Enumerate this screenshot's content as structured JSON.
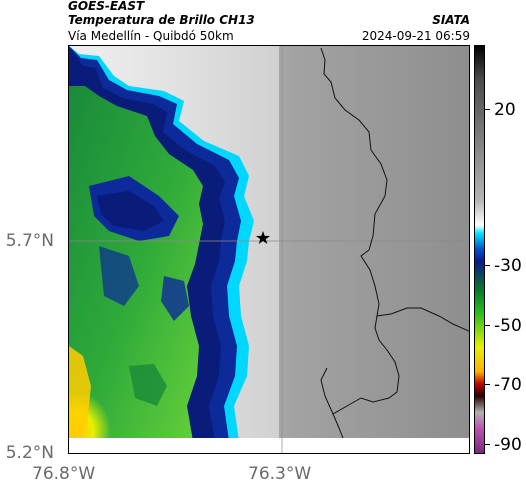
{
  "header": {
    "source": "GOES-EAST",
    "product": "Temperatura de Brillo CH13",
    "region": "Vía Medellín - Quibdó 50km",
    "org": "SIATA",
    "timestamp": "2024-09-21 06:59"
  },
  "map": {
    "lat_ticks": [
      "5.7°N",
      "5.2°N"
    ],
    "lon_ticks": [
      "76.8°W",
      "76.3°W"
    ],
    "marker": "star-marker"
  },
  "colorbar": {
    "labels": [
      "20",
      "-30",
      "-50",
      "-70",
      "-90"
    ],
    "colors": [
      "#000000",
      "#4a4a4a",
      "#b5b5b5",
      "#ffffff",
      "#00e5ff",
      "#0050c8",
      "#0a1a8a",
      "#0a7a2a",
      "#2cc21a",
      "#e8f000",
      "#ffb000",
      "#c00000",
      "#2a0000",
      "#b0b0b0",
      "#c050b0",
      "#7a2a80"
    ]
  }
}
